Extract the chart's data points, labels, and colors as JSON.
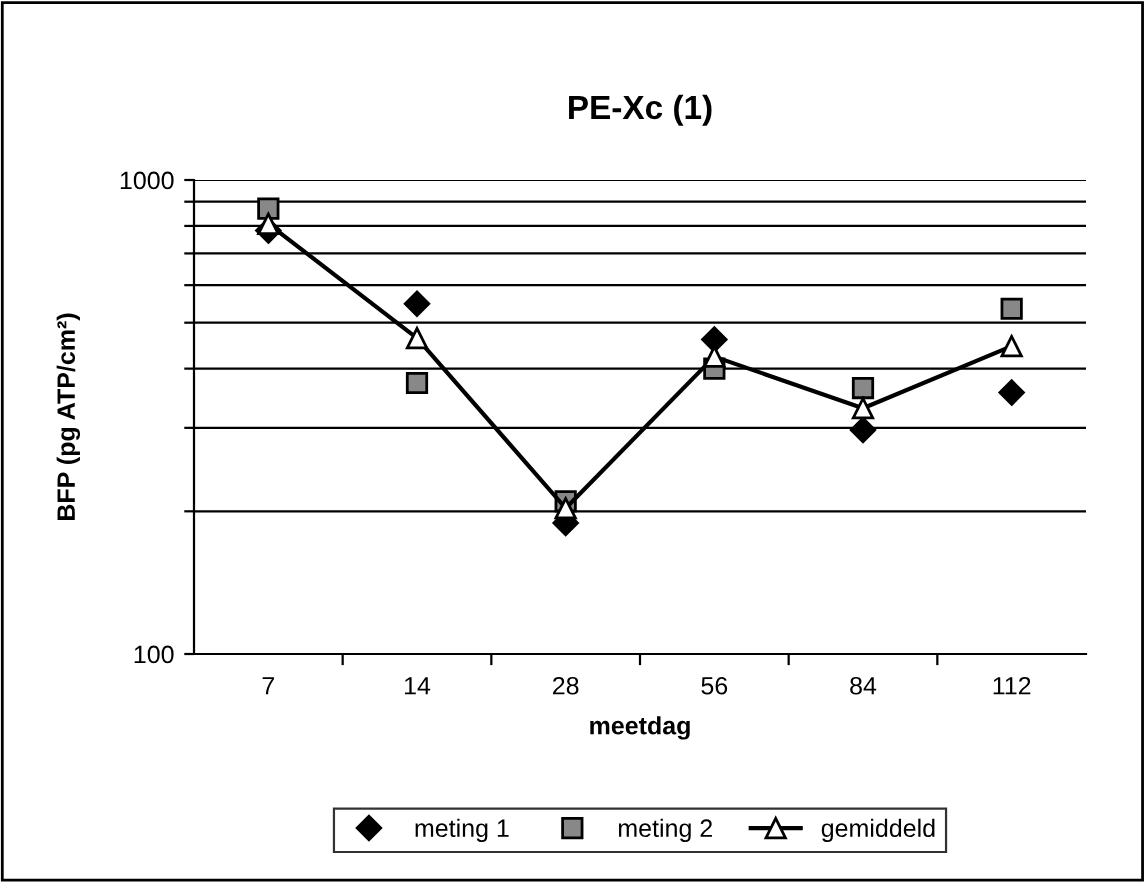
{
  "chart_data": {
    "type": "line",
    "title": "PE-Xc (1)",
    "xlabel": "meetdag",
    "ylabel": "BFP (pg ATP/cm²)",
    "categories": [
      "7",
      "14",
      "28",
      "56",
      "84",
      "112"
    ],
    "series": [
      {
        "name": "meting 1",
        "type": "scatter",
        "marker": "diamond",
        "color": "#000000",
        "values": [
          782,
          548,
          189,
          461,
          297,
          356
        ]
      },
      {
        "name": "meting 2",
        "type": "scatter",
        "marker": "square",
        "color": "#000000",
        "values": [
          870,
          373,
          210,
          400,
          364,
          535
        ]
      },
      {
        "name": "gemiddeld",
        "marker": "triangle",
        "color": "#000000",
        "values": [
          808,
          464,
          203,
          424,
          330,
          446
        ]
      }
    ],
    "log": true,
    "ylim": [
      100,
      1000
    ],
    "yticks": [
      100,
      {
        "value": 200,
        "label": null
      },
      {
        "value": 300,
        "label": null
      },
      {
        "value": 400,
        "label": null
      },
      {
        "value": 500,
        "label": null
      },
      {
        "value": 600,
        "label": null
      },
      {
        "value": 700,
        "label": null
      },
      {
        "value": 800,
        "label": null
      },
      {
        "value": 900,
        "label": null
      },
      1000
    ],
    "grid": "y",
    "legend": "bottom"
  }
}
